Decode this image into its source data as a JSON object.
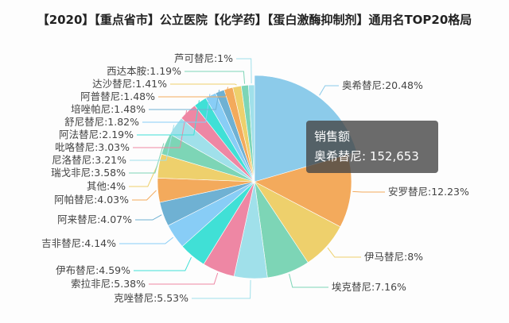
{
  "chart_data": {
    "type": "pie",
    "title": "【2020】【重点省市】公立医院【化学药】【蛋白激酶抑制剂】通用名TOP20格局",
    "slices": [
      {
        "name": "奥希替尼",
        "value": 20.48,
        "color": "#8ccbea"
      },
      {
        "name": "安罗替尼",
        "value": 12.23,
        "color": "#f3aa5c"
      },
      {
        "name": "伊马替尼",
        "value": 8,
        "color": "#eed06c"
      },
      {
        "name": "埃克替尼",
        "value": 7.16,
        "color": "#7dd5b6"
      },
      {
        "name": "克唑替尼",
        "value": 5.53,
        "color": "#a0e0ea"
      },
      {
        "name": "索拉非尼",
        "value": 5.38,
        "color": "#ee87a4"
      },
      {
        "name": "伊布替尼",
        "value": 4.59,
        "color": "#40e0d6"
      },
      {
        "name": "吉非替尼",
        "value": 4.14,
        "color": "#88cdf6"
      },
      {
        "name": "阿来替尼",
        "value": 4.07,
        "color": "#6fb1d3"
      },
      {
        "name": "阿帕替尼",
        "value": 4.03,
        "color": "#f3aa5c"
      },
      {
        "name": "其他",
        "value": 4,
        "color": "#eed06c"
      },
      {
        "name": "瑞戈非尼",
        "value": 3.58,
        "color": "#7dd5b6"
      },
      {
        "name": "尼洛替尼",
        "value": 3.21,
        "color": "#a0e0ea"
      },
      {
        "name": "吡咯替尼",
        "value": 3.03,
        "color": "#ee87a4"
      },
      {
        "name": "阿法替尼",
        "value": 2.19,
        "color": "#40e0d6"
      },
      {
        "name": "舒尼替尼",
        "value": 1.82,
        "color": "#88cdf6"
      },
      {
        "name": "培唑帕尼",
        "value": 1.48,
        "color": "#6fb1d3"
      },
      {
        "name": "阿普替尼",
        "value": 1.48,
        "color": "#f3aa5c"
      },
      {
        "name": "达沙替尼",
        "value": 1.41,
        "color": "#eed06c"
      },
      {
        "name": "西达本胺",
        "value": 1.19,
        "color": "#7dd5b6"
      },
      {
        "name": "芦可替尼",
        "value": 1,
        "color": "#a0e0ea"
      }
    ],
    "labels": [
      "奥希替尼:20.48%",
      "安罗替尼:12.23%",
      "伊马替尼:8%",
      "埃克替尼:7.16%",
      "克唑替尼:5.53%",
      "索拉非尼:5.38%",
      "伊布替尼:4.59%",
      "吉非替尼:4.14%",
      "阿来替尼:4.07%",
      "阿帕替尼:4.03%",
      "其他:4%",
      "瑞戈非尼:3.58%",
      "尼洛替尼:3.21%",
      "吡咯替尼:3.03%",
      "阿法替尼:2.19%",
      "舒尼替尼:1.82%",
      "培唑帕尼:1.48%",
      "阿普替尼:1.48%",
      "达沙替尼:1.41%",
      "西达本胺:1.19%",
      "芦可替尼:1%"
    ],
    "highlighted": "奥希替尼"
  },
  "tooltip": {
    "title": "销售额",
    "line": "奥希替尼: 152,653"
  }
}
